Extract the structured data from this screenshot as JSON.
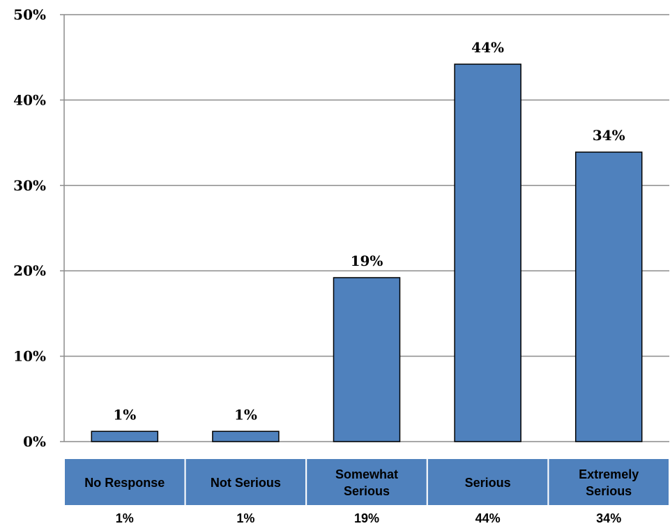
{
  "chart_data": {
    "type": "bar",
    "categories": [
      "No Response",
      "Not Serious",
      "Somewhat Serious",
      "Serious",
      "Extremely Serious"
    ],
    "category_lines": [
      [
        "No Response"
      ],
      [
        "Not Serious"
      ],
      [
        "Somewhat",
        "Serious"
      ],
      [
        "Serious"
      ],
      [
        "Extremely",
        "Serious"
      ]
    ],
    "values": [
      1.2,
      1.2,
      19.2,
      44.2,
      33.9
    ],
    "data_labels": [
      "1%",
      "1%",
      "19%",
      "44%",
      "34%"
    ],
    "table_values": [
      "1%",
      "1%",
      "19%",
      "44%",
      "34%"
    ],
    "ylim": [
      0,
      50
    ],
    "yticks": [
      0,
      10,
      20,
      30,
      40,
      50
    ],
    "ytick_labels": [
      "0%",
      "10%",
      "20%",
      "30%",
      "40%",
      "50%"
    ],
    "grid": true,
    "colors": {
      "bar_fill": "#4f81bd",
      "bar_stroke": "#000000",
      "table_fill": "#4f81bd",
      "grid": "#8c8c8c"
    }
  }
}
